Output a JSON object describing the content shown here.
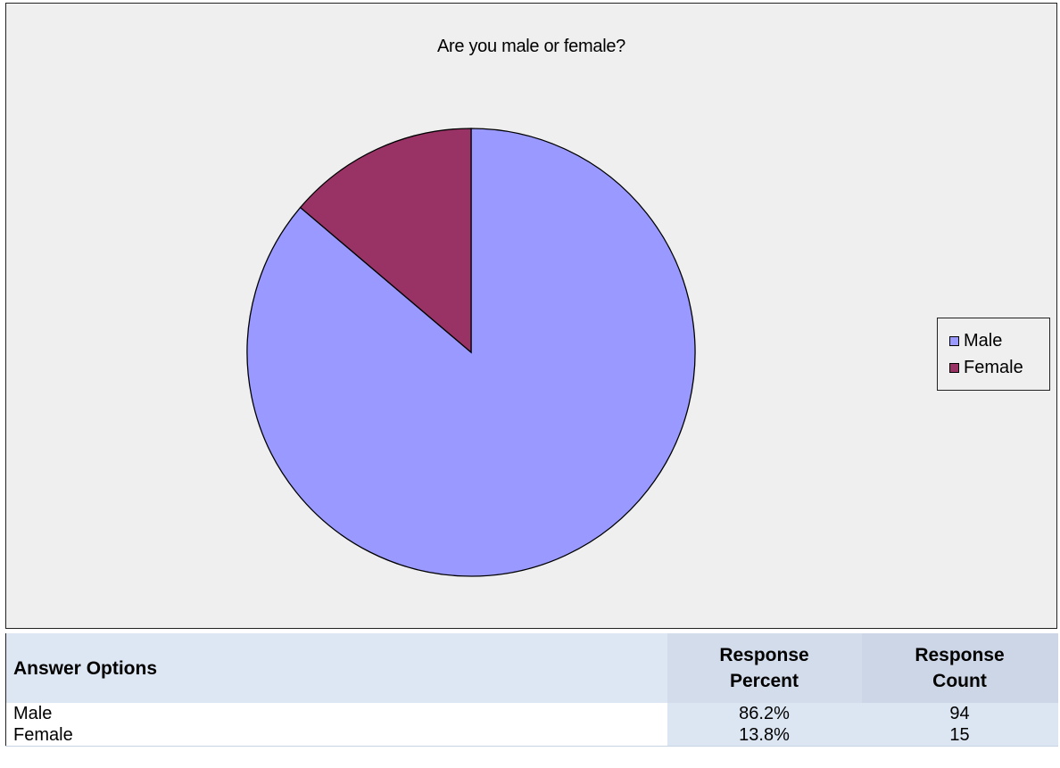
{
  "chart_data": {
    "type": "pie",
    "title": "Are you male or female?",
    "categories": [
      "Male",
      "Female"
    ],
    "values": [
      86.2,
      13.8
    ],
    "colors": [
      "#9999ff",
      "#993366"
    ],
    "legend": {
      "placement": "right",
      "entries": [
        "Male",
        "Female"
      ]
    }
  },
  "table": {
    "headers": {
      "answer": "Answer Options",
      "percent_line1": "Response",
      "percent_line2": "Percent",
      "count_line1": "Response",
      "count_line2": "Count"
    },
    "rows": [
      {
        "option": "Male",
        "percent": "86.2%",
        "count": "94"
      },
      {
        "option": "Female",
        "percent": "13.8%",
        "count": "15"
      }
    ]
  }
}
